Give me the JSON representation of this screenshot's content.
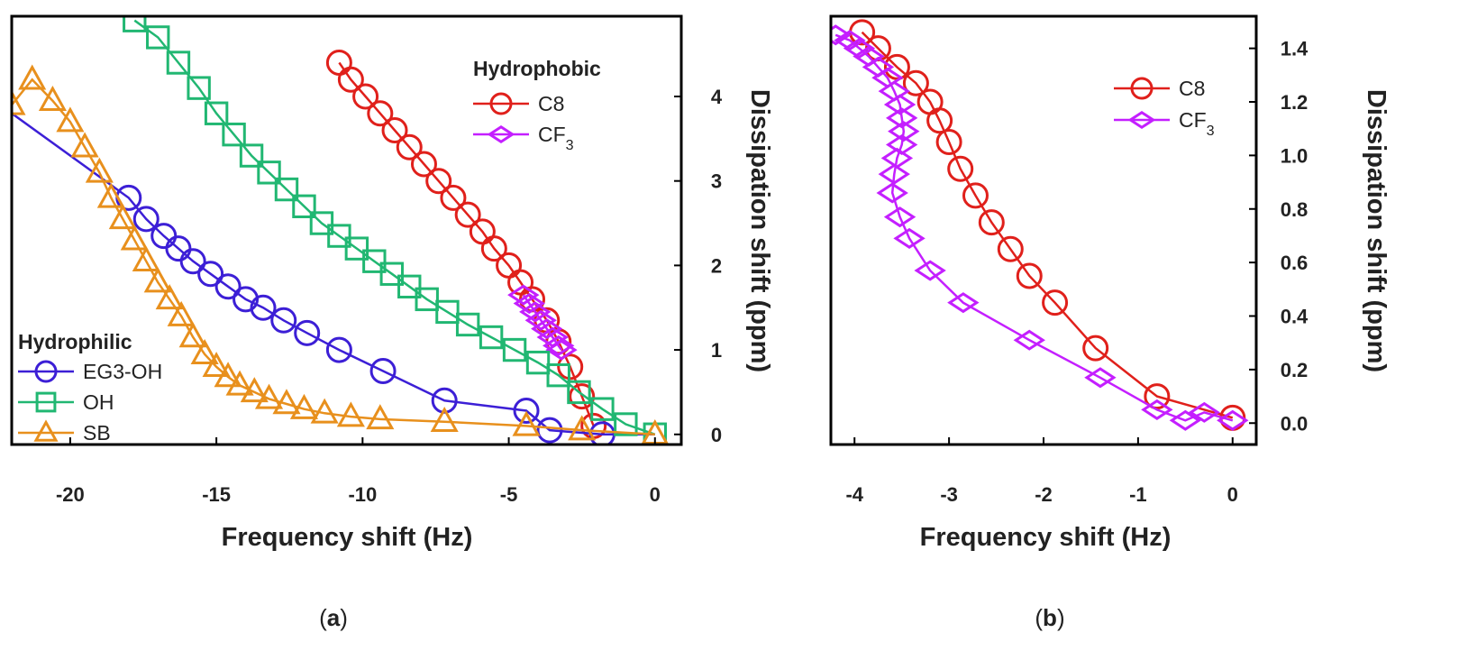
{
  "panels": {
    "a_label": "a",
    "b_label": "b"
  },
  "chart_data": [
    {
      "type": "scatter",
      "panel": "(a)",
      "xlabel": "Frequency shift (Hz)",
      "ylabel": "Dissipation shift (ppm)",
      "xlim": [
        -22,
        0.9
      ],
      "ylim": [
        -0.12,
        4.95
      ],
      "xticks": [
        -20,
        -15,
        -10,
        -5,
        0
      ],
      "yticks": [
        0,
        1,
        2,
        3,
        4
      ],
      "x_tick_labels": [
        "-20",
        "-15",
        "-10",
        "-5",
        "0"
      ],
      "y_tick_labels": [
        "0",
        "1",
        "2",
        "3",
        "4"
      ],
      "y_axis_side": "right",
      "legends": [
        {
          "title": "Hydrophobic",
          "location": "top-right",
          "entries": [
            "C8",
            "CF3"
          ]
        },
        {
          "title": "Hydrophilic",
          "location": "bottom-left",
          "entries": [
            "EG3-OH",
            "OH",
            "SB"
          ]
        }
      ],
      "series": [
        {
          "name": "C8",
          "color": "#e0201b",
          "marker": "circle",
          "x": [
            -10.8,
            -10.4,
            -9.9,
            -9.4,
            -8.9,
            -8.4,
            -7.9,
            -7.4,
            -6.9,
            -6.4,
            -5.9,
            -5.5,
            -5.0,
            -4.6,
            -4.2,
            -3.7,
            -3.3,
            -2.9,
            -2.5,
            -2.1
          ],
          "y": [
            4.4,
            4.2,
            4.0,
            3.8,
            3.6,
            3.4,
            3.2,
            3.0,
            2.8,
            2.6,
            2.4,
            2.2,
            2.0,
            1.8,
            1.6,
            1.35,
            1.1,
            0.8,
            0.45,
            0.1
          ]
        },
        {
          "name": "CF3",
          "color": "#c41fff",
          "marker": "diamond",
          "x": [
            -4.5,
            -4.3,
            -4.1,
            -3.9,
            -3.7,
            -3.5,
            -3.3,
            -3.2
          ],
          "y": [
            1.65,
            1.55,
            1.45,
            1.35,
            1.25,
            1.15,
            1.05,
            1.0
          ]
        },
        {
          "name": "EG3-OH",
          "color": "#3c1fd6",
          "marker": "circle",
          "x": [
            -22.0,
            -18.0,
            -17.4,
            -16.8,
            -16.3,
            -15.8,
            -15.2,
            -14.6,
            -14.0,
            -13.4,
            -12.7,
            -11.9,
            -10.8,
            -9.3,
            -7.2,
            -4.4,
            -3.6,
            -1.8,
            0
          ],
          "y": [
            3.8,
            2.8,
            2.55,
            2.35,
            2.2,
            2.05,
            1.9,
            1.75,
            1.6,
            1.5,
            1.35,
            1.2,
            1.0,
            0.75,
            0.4,
            0.28,
            0.05,
            0.0,
            0.0
          ],
          "markers_x": [
            -18.0,
            -17.4,
            -16.8,
            -16.3,
            -15.8,
            -15.2,
            -14.6,
            -14.0,
            -13.4,
            -12.7,
            -11.9,
            -10.8,
            -9.3,
            -7.2,
            -4.4,
            -3.6,
            -1.8
          ],
          "markers_y": [
            2.8,
            2.55,
            2.35,
            2.2,
            2.05,
            1.9,
            1.75,
            1.6,
            1.5,
            1.35,
            1.2,
            1.0,
            0.75,
            0.4,
            0.28,
            0.05,
            0.0
          ]
        },
        {
          "name": "OH",
          "color": "#21b772",
          "marker": "square",
          "x": [
            -17.8,
            -17.0,
            -16.3,
            -15.6,
            -15.0,
            -14.4,
            -13.8,
            -13.2,
            -12.6,
            -12.0,
            -11.4,
            -10.8,
            -10.2,
            -9.6,
            -9.0,
            -8.4,
            -7.8,
            -7.1,
            -6.4,
            -5.6,
            -4.8,
            -4.0,
            -3.3,
            -2.6,
            -1.8,
            -1.0,
            0
          ],
          "y": [
            4.9,
            4.7,
            4.4,
            4.1,
            3.8,
            3.55,
            3.3,
            3.1,
            2.9,
            2.7,
            2.5,
            2.35,
            2.2,
            2.05,
            1.9,
            1.75,
            1.6,
            1.45,
            1.3,
            1.15,
            1.0,
            0.85,
            0.7,
            0.5,
            0.3,
            0.12,
            0.0
          ]
        },
        {
          "name": "SB",
          "color": "#e8901d",
          "marker": "triangle",
          "x": [
            -22.0,
            -21.3,
            -20.6,
            -20.0,
            -19.5,
            -19.0,
            -18.6,
            -18.2,
            -17.8,
            -17.4,
            -17.0,
            -16.6,
            -16.2,
            -15.8,
            -15.4,
            -15.0,
            -14.6,
            -14.2,
            -13.7,
            -13.2,
            -12.6,
            -12.0,
            -11.3,
            -10.4,
            -9.4,
            -7.2,
            -4.4,
            -2.5,
            0
          ],
          "y": [
            3.9,
            4.2,
            3.95,
            3.7,
            3.4,
            3.1,
            2.8,
            2.55,
            2.3,
            2.05,
            1.8,
            1.6,
            1.4,
            1.15,
            0.95,
            0.8,
            0.68,
            0.58,
            0.5,
            0.42,
            0.36,
            0.3,
            0.25,
            0.21,
            0.18,
            0.15,
            0.1,
            0.05,
            0.0
          ]
        }
      ]
    },
    {
      "type": "scatter",
      "panel": "(b)",
      "xlabel": "Frequency shift (Hz)",
      "ylabel": "Dissipation shift (ppm)",
      "xlim": [
        -4.25,
        0.25
      ],
      "ylim": [
        -0.08,
        1.52
      ],
      "xticks": [
        -4,
        -3,
        -2,
        -1,
        0
      ],
      "yticks": [
        0.0,
        0.2,
        0.4,
        0.6,
        0.8,
        1.0,
        1.2,
        1.4
      ],
      "x_tick_labels": [
        "-4",
        "-3",
        "-2",
        "-1",
        "0"
      ],
      "y_tick_labels": [
        "0.0",
        "0.2",
        "0.4",
        "0.6",
        "0.8",
        "1.0",
        "1.2",
        "1.4"
      ],
      "y_axis_side": "right",
      "legends": [
        {
          "title": "",
          "location": "top-right",
          "entries": [
            "C8",
            "CF3"
          ]
        }
      ],
      "series": [
        {
          "name": "C8",
          "color": "#e0201b",
          "marker": "circle",
          "x": [
            -3.92,
            -3.75,
            -3.55,
            -3.35,
            -3.2,
            -3.1,
            -3.0,
            -2.88,
            -2.72,
            -2.55,
            -2.35,
            -2.15,
            -1.88,
            -1.45,
            -0.8,
            0
          ],
          "y": [
            1.46,
            1.4,
            1.33,
            1.27,
            1.2,
            1.13,
            1.05,
            0.95,
            0.85,
            0.75,
            0.65,
            0.55,
            0.45,
            0.28,
            0.1,
            0.02
          ]
        },
        {
          "name": "CF3",
          "color": "#c41fff",
          "marker": "diamond",
          "x": [
            -4.2,
            -4.05,
            -3.95,
            -3.85,
            -3.75,
            -3.65,
            -3.58,
            -3.52,
            -3.5,
            -3.48,
            -3.5,
            -3.55,
            -3.58,
            -3.6,
            -3.52,
            -3.42,
            -3.2,
            -2.85,
            -2.15,
            -1.4,
            -0.8,
            -0.5,
            -0.3,
            0
          ],
          "y": [
            1.45,
            1.43,
            1.4,
            1.37,
            1.33,
            1.29,
            1.24,
            1.19,
            1.14,
            1.09,
            1.04,
            0.99,
            0.93,
            0.86,
            0.77,
            0.69,
            0.57,
            0.45,
            0.31,
            0.17,
            0.05,
            0.01,
            0.04,
            0.01
          ]
        }
      ]
    }
  ]
}
